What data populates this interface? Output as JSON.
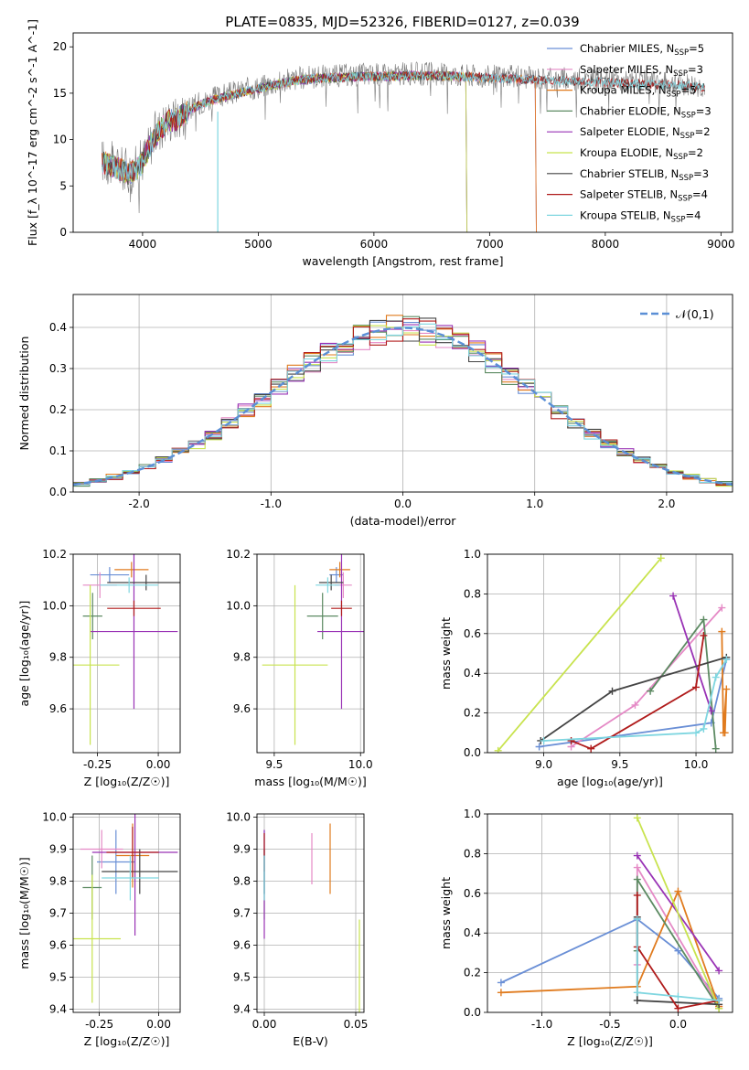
{
  "figure": {
    "title": "PLATE=0835, MJD=52326, FIBERID=0127, z=0.039"
  },
  "chart_data": [
    {
      "id": "spectrum",
      "type": "line",
      "xlabel": "wavelength [Angstrom, rest frame]",
      "ylabel": "Flux [f_λ 10^-17 erg cm^-2 s^-1 A^-1]",
      "xlim": [
        3400,
        9100
      ],
      "ylim": [
        0,
        21.5
      ],
      "xticks": [
        4000,
        5000,
        6000,
        7000,
        8000,
        9000
      ],
      "yticks": [
        0,
        5,
        10,
        15,
        20
      ],
      "legend_position": "top-right",
      "continuum": {
        "x": [
          3650,
          3800,
          3900,
          4000,
          4100,
          4200,
          4300,
          4400,
          4500,
          4700,
          4900,
          5100,
          5300,
          5500,
          5700,
          5900,
          6100,
          6300,
          6500,
          6700,
          6900,
          7100,
          7300,
          7500,
          7700,
          7900,
          8100,
          8300,
          8500,
          8700,
          8860
        ],
        "y": [
          7.8,
          7.0,
          6.5,
          7.8,
          10.5,
          12.0,
          12.4,
          13.3,
          14.0,
          14.8,
          15.4,
          16.0,
          16.5,
          16.8,
          16.9,
          17.0,
          17.0,
          17.1,
          17.1,
          17.0,
          16.9,
          16.8,
          16.7,
          16.6,
          16.5,
          16.4,
          16.3,
          16.2,
          16.1,
          16.0,
          15.8
        ]
      },
      "series": [
        {
          "name": "Chabrier MILES, N_SSP=5",
          "label": "Chabrier MILES, N",
          "sub": "SSP",
          "suffix": "=5",
          "color": "#6a8fd6",
          "xmax": 7400
        },
        {
          "name": "Salpeter MILES, N_SSP=3",
          "label": "Salpeter MILES, N",
          "sub": "SSP",
          "suffix": "=3",
          "color": "#e58ac6",
          "xmax": 7400
        },
        {
          "name": "Kroupa MILES, N_SSP=5",
          "label": "Kroupa MILES, N",
          "sub": "SSP",
          "suffix": "=5",
          "color": "#e07b1e",
          "xmax": 7400
        },
        {
          "name": "Chabrier ELODIE, N_SSP=3",
          "label": "Chabrier ELODIE, N",
          "sub": "SSP",
          "suffix": "=3",
          "color": "#5c8a62",
          "xmax": 6800
        },
        {
          "name": "Salpeter ELODIE, N_SSP=2",
          "label": "Salpeter ELODIE, N",
          "sub": "SSP",
          "suffix": "=2",
          "color": "#9932b5",
          "xmax": 6800
        },
        {
          "name": "Kroupa ELODIE, N_SSP=2",
          "label": "Kroupa ELODIE, N",
          "sub": "SSP",
          "suffix": "=2",
          "color": "#c8e34e",
          "xmax": 6800
        },
        {
          "name": "Chabrier STELIB, N_SSP=3",
          "label": "Chabrier STELIB, N",
          "sub": "SSP",
          "suffix": "=3",
          "color": "#444444",
          "xmax": 8860
        },
        {
          "name": "Salpeter STELIB, N_SSP=4",
          "label": "Salpeter STELIB, N",
          "sub": "SSP",
          "suffix": "=4",
          "color": "#b01b1b",
          "xmax": 8860
        },
        {
          "name": "Kroupa STELIB, N_SSP=4",
          "label": "Kroupa STELIB, N",
          "sub": "SSP",
          "suffix": "=4",
          "color": "#7fd6e0",
          "xmax": 8860
        }
      ]
    },
    {
      "id": "residuals",
      "type": "line",
      "xlabel": "(data-model)/error",
      "ylabel": "Normed distribution",
      "xlim": [
        -2.5,
        2.5
      ],
      "ylim": [
        0,
        0.48
      ],
      "xticks": [
        -2,
        -1,
        0,
        1,
        2
      ],
      "yticks": [
        0.0,
        0.1,
        0.2,
        0.3,
        0.4
      ],
      "grid": true,
      "legend_position": "top-right",
      "reference": {
        "name": "𝒩(0,1)",
        "color": "#5b8fd6",
        "mean": 0,
        "sigma": 1
      }
    },
    {
      "id": "z-age",
      "type": "scatter",
      "xlabel": "Z [log₁₀(Z/Z☉)]",
      "ylabel": "age  [log₁₀(age/yr)]",
      "xlim": [
        -0.35,
        0.09
      ],
      "ylim": [
        9.43,
        10.2
      ],
      "xticks": [
        -0.25,
        0.0
      ],
      "yticks": [
        9.6,
        9.8,
        10.0,
        10.2
      ],
      "points": [
        {
          "x": -0.2,
          "y": 10.12,
          "xerr": 0.08,
          "yerr": 0.03,
          "color": "#6a8fd6"
        },
        {
          "x": -0.24,
          "y": 10.08,
          "xerr": 0.07,
          "yerr": 0.05,
          "color": "#e58ac6"
        },
        {
          "x": -0.11,
          "y": 10.14,
          "xerr": 0.07,
          "yerr": 0.03,
          "color": "#e07b1e"
        },
        {
          "x": -0.27,
          "y": 9.96,
          "xerr": 0.04,
          "yerr": 0.09,
          "color": "#5c8a62"
        },
        {
          "x": -0.1,
          "y": 9.9,
          "xerr": 0.18,
          "yerr": 0.3,
          "color": "#9932b5"
        },
        {
          "x": -0.28,
          "y": 9.77,
          "xerr": 0.12,
          "yerr": 0.31,
          "color": "#c8e34e"
        },
        {
          "x": -0.05,
          "y": 10.09,
          "xerr": 0.16,
          "yerr": 0.03,
          "color": "#444444"
        },
        {
          "x": -0.1,
          "y": 9.99,
          "xerr": 0.11,
          "yerr": 0.03,
          "color": "#b01b1b"
        },
        {
          "x": -0.12,
          "y": 10.08,
          "xerr": 0.12,
          "yerr": 0.03,
          "color": "#7fd6e0"
        }
      ]
    },
    {
      "id": "mass-age",
      "type": "scatter",
      "xlabel": "mass [log₁₀(M/M☉)]",
      "ylabel": "",
      "xlim": [
        9.4,
        10.02
      ],
      "ylim": [
        9.43,
        10.2
      ],
      "xticks": [
        9.5,
        10.0
      ],
      "yticks": [
        9.6,
        9.8,
        10.0,
        10.2
      ],
      "points": [
        {
          "x": 9.86,
          "y": 10.12,
          "xerr": 0.04,
          "yerr": 0.03,
          "color": "#6a8fd6"
        },
        {
          "x": 9.9,
          "y": 10.08,
          "xerr": 0.05,
          "yerr": 0.05,
          "color": "#e58ac6"
        },
        {
          "x": 9.88,
          "y": 10.14,
          "xerr": 0.06,
          "yerr": 0.03,
          "color": "#e07b1e"
        },
        {
          "x": 9.78,
          "y": 9.96,
          "xerr": 0.09,
          "yerr": 0.09,
          "color": "#5c8a62"
        },
        {
          "x": 9.89,
          "y": 9.9,
          "xerr": 0.14,
          "yerr": 0.3,
          "color": "#9932b5"
        },
        {
          "x": 9.62,
          "y": 9.77,
          "xerr": 0.19,
          "yerr": 0.31,
          "color": "#c8e34e"
        },
        {
          "x": 9.83,
          "y": 10.09,
          "xerr": 0.07,
          "yerr": 0.03,
          "color": "#444444"
        },
        {
          "x": 9.89,
          "y": 9.99,
          "xerr": 0.06,
          "yerr": 0.03,
          "color": "#b01b1b"
        },
        {
          "x": 9.81,
          "y": 10.08,
          "xerr": 0.07,
          "yerr": 0.03,
          "color": "#7fd6e0"
        }
      ]
    },
    {
      "id": "age-weight",
      "type": "line",
      "xlabel": "age  [log₁₀(age/yr)]",
      "ylabel": "mass weight",
      "xlim": [
        8.63,
        10.24
      ],
      "ylim": [
        0,
        1.0
      ],
      "xticks": [
        9.0,
        9.5,
        10.0
      ],
      "yticks": [
        0.0,
        0.2,
        0.4,
        0.6,
        0.8,
        1.0
      ],
      "grid": true,
      "series": [
        {
          "color": "#6a8fd6",
          "x": [
            8.97,
            10.1,
            10.2
          ],
          "y": [
            0.03,
            0.15,
            0.47
          ]
        },
        {
          "color": "#e58ac6",
          "x": [
            9.18,
            9.6,
            10.17
          ],
          "y": [
            0.03,
            0.24,
            0.73
          ]
        },
        {
          "color": "#e07b1e",
          "x": [
            10.17,
            10.18,
            10.2,
            10.19
          ],
          "y": [
            0.61,
            0.1,
            0.32,
            0.1
          ]
        },
        {
          "color": "#5c8a62",
          "x": [
            9.7,
            10.05,
            10.13
          ],
          "y": [
            0.31,
            0.67,
            0.02
          ]
        },
        {
          "color": "#9932b5",
          "x": [
            9.85,
            10.1
          ],
          "y": [
            0.79,
            0.21
          ]
        },
        {
          "color": "#c8e34e",
          "x": [
            8.7,
            9.77
          ],
          "y": [
            0.01,
            0.98
          ]
        },
        {
          "color": "#444444",
          "x": [
            8.98,
            9.45,
            10.2
          ],
          "y": [
            0.06,
            0.31,
            0.48
          ]
        },
        {
          "color": "#b01b1b",
          "x": [
            9.18,
            9.31,
            10.0,
            10.05
          ],
          "y": [
            0.06,
            0.02,
            0.33,
            0.59
          ]
        },
        {
          "color": "#7fd6e0",
          "x": [
            9.0,
            10.0,
            10.05,
            10.13,
            10.2
          ],
          "y": [
            0.06,
            0.1,
            0.12,
            0.38,
            0.47
          ]
        }
      ]
    },
    {
      "id": "z-mass",
      "type": "scatter",
      "xlabel": "Z [log₁₀(Z/Z☉)]",
      "ylabel": "mass [log₁₀(M/M☉)]",
      "xlim": [
        -0.36,
        0.09
      ],
      "ylim": [
        9.39,
        10.01
      ],
      "xticks": [
        -0.25,
        0.0
      ],
      "yticks": [
        9.4,
        9.5,
        9.6,
        9.7,
        9.8,
        9.9,
        10.0
      ],
      "points": [
        {
          "x": -0.18,
          "y": 9.86,
          "xerr": 0.08,
          "yerr": 0.1,
          "color": "#6a8fd6"
        },
        {
          "x": -0.24,
          "y": 9.9,
          "xerr": 0.09,
          "yerr": 0.06,
          "color": "#e58ac6"
        },
        {
          "x": -0.11,
          "y": 9.88,
          "xerr": 0.07,
          "yerr": 0.1,
          "color": "#e07b1e"
        },
        {
          "x": -0.28,
          "y": 9.78,
          "xerr": 0.04,
          "yerr": 0.1,
          "color": "#5c8a62"
        },
        {
          "x": -0.1,
          "y": 9.89,
          "xerr": 0.18,
          "yerr": 0.26,
          "color": "#9932b5"
        },
        {
          "x": -0.28,
          "y": 9.62,
          "xerr": 0.12,
          "yerr": 0.2,
          "color": "#c8e34e"
        },
        {
          "x": -0.08,
          "y": 9.83,
          "xerr": 0.16,
          "yerr": 0.07,
          "color": "#444444"
        },
        {
          "x": -0.11,
          "y": 9.89,
          "xerr": 0.11,
          "yerr": 0.08,
          "color": "#b01b1b"
        },
        {
          "x": -0.12,
          "y": 9.81,
          "xerr": 0.12,
          "yerr": 0.07,
          "color": "#7fd6e0"
        }
      ]
    },
    {
      "id": "ebv-mass",
      "type": "scatter",
      "xlabel": "E(B-V)",
      "ylabel": "",
      "xlim": [
        -0.004,
        0.0545
      ],
      "ylim": [
        9.39,
        10.01
      ],
      "xticks": [
        0.0,
        0.05
      ],
      "yticks": [
        9.4,
        9.5,
        9.6,
        9.7,
        9.8,
        9.9,
        10.0
      ],
      "points": [
        {
          "x": 0.0,
          "y": 9.86,
          "xerr": 0,
          "yerr": 0.1,
          "color": "#6a8fd6"
        },
        {
          "x": 0.026,
          "y": 9.87,
          "xerr": 0,
          "yerr": 0.08,
          "color": "#e58ac6"
        },
        {
          "x": 0.036,
          "y": 9.87,
          "xerr": 0,
          "yerr": 0.11,
          "color": "#e07b1e"
        },
        {
          "x": 0.0,
          "y": 9.78,
          "xerr": 0,
          "yerr": 0.1,
          "color": "#5c8a62"
        },
        {
          "x": 0.0,
          "y": 9.79,
          "xerr": 0,
          "yerr": 0.17,
          "color": "#9932b5"
        },
        {
          "x": 0.052,
          "y": 9.53,
          "xerr": 0,
          "yerr": 0.15,
          "color": "#c8e34e"
        },
        {
          "x": 0.0,
          "y": 9.83,
          "xerr": 0,
          "yerr": 0.07,
          "color": "#444444"
        },
        {
          "x": 0.0,
          "y": 9.89,
          "xerr": 0,
          "yerr": 0.06,
          "color": "#b01b1b"
        },
        {
          "x": 0.0,
          "y": 9.81,
          "xerr": 0,
          "yerr": 0.07,
          "color": "#7fd6e0"
        }
      ]
    },
    {
      "id": "z-weight",
      "type": "line",
      "xlabel": "Z [log₁₀(Z/Z☉)]",
      "ylabel": "mass weight",
      "xlim": [
        -1.4,
        0.4
      ],
      "ylim": [
        0,
        1.0
      ],
      "xticks": [
        -1.0,
        -0.5,
        0.0
      ],
      "yticks": [
        0.0,
        0.2,
        0.4,
        0.6,
        0.8,
        1.0
      ],
      "grid": true,
      "series": [
        {
          "color": "#6a8fd6",
          "x": [
            -1.3,
            -0.3,
            0.0,
            0.3
          ],
          "y": [
            0.15,
            0.47,
            0.31,
            0.07
          ]
        },
        {
          "color": "#e58ac6",
          "x": [
            -0.3,
            -0.3,
            0.3
          ],
          "y": [
            0.24,
            0.73,
            0.03
          ]
        },
        {
          "color": "#e07b1e",
          "x": [
            -1.3,
            -0.3,
            0.0,
            0.3
          ],
          "y": [
            0.1,
            0.13,
            0.61,
            0.03
          ]
        },
        {
          "color": "#5c8a62",
          "x": [
            -0.3,
            -0.3,
            0.3
          ],
          "y": [
            0.31,
            0.67,
            0.02
          ]
        },
        {
          "color": "#9932b5",
          "x": [
            -0.3,
            0.3
          ],
          "y": [
            0.79,
            0.21
          ]
        },
        {
          "color": "#c8e34e",
          "x": [
            -0.3,
            0.3
          ],
          "y": [
            0.98,
            0.02
          ]
        },
        {
          "color": "#444444",
          "x": [
            -0.3,
            -0.3,
            0.3
          ],
          "y": [
            0.48,
            0.06,
            0.04
          ]
        },
        {
          "color": "#b01b1b",
          "x": [
            -0.3,
            -0.3,
            0.0,
            0.3
          ],
          "y": [
            0.59,
            0.33,
            0.02,
            0.06
          ]
        },
        {
          "color": "#7fd6e0",
          "x": [
            -0.3,
            -0.3,
            0.0,
            0.3
          ],
          "y": [
            0.47,
            0.1,
            0.08,
            0.06
          ]
        }
      ]
    }
  ]
}
